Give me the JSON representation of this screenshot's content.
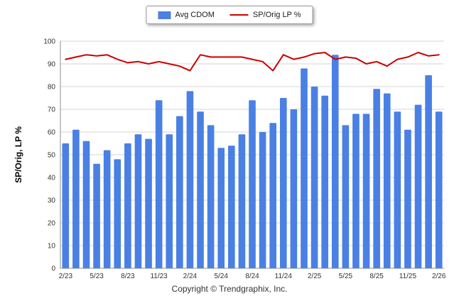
{
  "footer": {
    "copyright": "Copyright © Trendgraphix, Inc."
  },
  "colors": {
    "bar": "#4a80e4",
    "line": "#cc0000",
    "grid": "#d6d6d6",
    "axis": "#8c8c8c",
    "text": "#333333"
  },
  "chart_data": {
    "type": "bar",
    "subtype": "bar+line combo",
    "title": "",
    "xlabel": "",
    "ylabel": "SP/Orig, LP %",
    "ylim": [
      0,
      100
    ],
    "y_ticks": [
      0,
      10,
      20,
      30,
      40,
      50,
      60,
      70,
      80,
      90,
      100
    ],
    "grid": "horizontal",
    "legend_position": "top-center",
    "tick_every": 3,
    "x_tick_labels": [
      "2/23",
      "5/23",
      "8/23",
      "11/23",
      "2/24",
      "5/24",
      "8/24",
      "11/24",
      "2/25",
      "5/25",
      "8/25",
      "11/25",
      "2/26"
    ],
    "x": [
      "2/23",
      "3/23",
      "4/23",
      "5/23",
      "6/23",
      "7/23",
      "8/23",
      "9/23",
      "10/23",
      "11/23",
      "12/23",
      "1/24",
      "2/24",
      "3/24",
      "4/24",
      "5/24",
      "6/24",
      "7/24",
      "8/24",
      "9/24",
      "10/24",
      "11/24",
      "12/24",
      "1/25",
      "2/25",
      "3/25",
      "4/25",
      "5/25",
      "6/25",
      "7/25",
      "8/25",
      "9/25",
      "10/25",
      "11/25",
      "12/25",
      "1/26",
      "2/26"
    ],
    "series": [
      {
        "name": "Avg CDOM",
        "type": "bar",
        "color": "#4a80e4",
        "values": [
          55,
          61,
          56,
          46,
          52,
          48,
          55,
          59,
          57,
          74,
          59,
          67,
          78,
          69,
          63,
          53,
          54,
          59,
          74,
          60,
          64,
          75,
          70,
          88,
          80,
          76,
          94,
          63,
          68,
          68,
          79,
          77,
          69,
          61,
          72,
          85,
          69
        ]
      },
      {
        "name": "SP/Orig LP %",
        "type": "line",
        "color": "#cc0000",
        "values": [
          92,
          93,
          94,
          93.5,
          94,
          92,
          90.5,
          91,
          90,
          91,
          90,
          89,
          87,
          94,
          93,
          93,
          93,
          93,
          92,
          91,
          87,
          94,
          92,
          93,
          94.5,
          95,
          92,
          93,
          92.5,
          90,
          91,
          89,
          92,
          93,
          95,
          93.5,
          94
        ]
      }
    ]
  }
}
